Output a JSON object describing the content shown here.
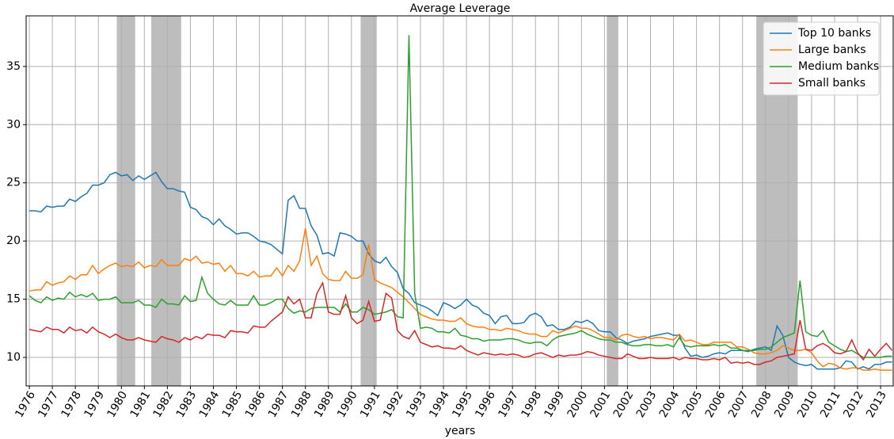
{
  "chart_data": {
    "type": "line",
    "title": "Average Leverage",
    "x_label": "years",
    "xlim": [
      1975.86,
      2013.55
    ],
    "ylim": [
      7.55,
      39.35
    ],
    "xticks": [
      1976,
      1977,
      1978,
      1979,
      1980,
      1981,
      1982,
      1983,
      1984,
      1985,
      1986,
      1987,
      1988,
      1989,
      1990,
      1991,
      1992,
      1993,
      1994,
      1995,
      1996,
      1997,
      1998,
      1999,
      2000,
      2001,
      2002,
      2003,
      2004,
      2005,
      2006,
      2007,
      2008,
      2009,
      2010,
      2011,
      2012,
      2013
    ],
    "yticks": [
      10,
      15,
      20,
      25,
      30,
      35
    ],
    "grid": true,
    "legend": "upper right",
    "shaded_color": "#bdbdbd",
    "shaded_periods": [
      [
        1979.8,
        1980.6
      ],
      [
        1981.3,
        1982.6
      ],
      [
        1990.4,
        1991.1
      ],
      [
        2001.1,
        2001.6
      ],
      [
        2007.6,
        2009.4
      ]
    ],
    "x": [
      1976,
      1976.25,
      1976.5,
      1976.75,
      1977,
      1977.25,
      1977.5,
      1977.75,
      1978,
      1978.25,
      1978.5,
      1978.75,
      1979,
      1979.25,
      1979.5,
      1979.75,
      1980,
      1980.25,
      1980.5,
      1980.75,
      1981,
      1981.25,
      1981.5,
      1981.75,
      1982,
      1982.25,
      1982.5,
      1982.75,
      1983,
      1983.25,
      1983.5,
      1983.75,
      1984,
      1984.25,
      1984.5,
      1984.75,
      1985,
      1985.25,
      1985.5,
      1985.75,
      1986,
      1986.25,
      1986.5,
      1986.75,
      1987,
      1987.25,
      1987.5,
      1987.75,
      1988,
      1988.25,
      1988.5,
      1988.75,
      1989,
      1989.25,
      1989.5,
      1989.75,
      1990,
      1990.25,
      1990.5,
      1990.75,
      1991,
      1991.25,
      1991.5,
      1991.75,
      1992,
      1992.25,
      1992.5,
      1992.75,
      1993,
      1993.25,
      1993.5,
      1993.75,
      1994,
      1994.25,
      1994.5,
      1994.75,
      1995,
      1995.25,
      1995.5,
      1995.75,
      1996,
      1996.25,
      1996.5,
      1996.75,
      1997,
      1997.25,
      1997.5,
      1997.75,
      1998,
      1998.25,
      1998.5,
      1998.75,
      1999,
      1999.25,
      1999.5,
      1999.75,
      2000,
      2000.25,
      2000.5,
      2000.75,
      2001,
      2001.25,
      2001.5,
      2001.75,
      2002,
      2002.25,
      2002.5,
      2002.75,
      2003,
      2003.25,
      2003.5,
      2003.75,
      2004,
      2004.25,
      2004.5,
      2004.75,
      2005,
      2005.25,
      2005.5,
      2005.75,
      2006,
      2006.25,
      2006.5,
      2006.75,
      2007,
      2007.25,
      2007.5,
      2007.75,
      2008,
      2008.25,
      2008.5,
      2008.75,
      2009,
      2009.25,
      2009.5,
      2009.75,
      2010,
      2010.25,
      2010.5,
      2010.75,
      2011,
      2011.25,
      2011.5,
      2011.75,
      2012,
      2012.25,
      2012.5,
      2012.75,
      2013,
      2013.25,
      2013.5
    ],
    "series": [
      {
        "name": "Top 10 banks",
        "color": "#1f77b4",
        "values": [
          22.6,
          22.6,
          22.5,
          23.0,
          22.9,
          23.0,
          23.0,
          23.6,
          23.4,
          23.8,
          24.1,
          24.8,
          24.8,
          25.0,
          25.7,
          25.9,
          25.6,
          25.7,
          25.2,
          25.6,
          25.3,
          25.6,
          25.9,
          25.1,
          24.5,
          24.5,
          24.3,
          24.2,
          22.9,
          22.7,
          22.1,
          21.9,
          21.4,
          21.9,
          21.3,
          21.0,
          20.6,
          20.7,
          20.7,
          20.4,
          20.0,
          19.9,
          19.7,
          19.3,
          18.9,
          23.5,
          23.9,
          22.8,
          22.8,
          21.3,
          20.5,
          18.9,
          19.0,
          18.7,
          20.7,
          20.6,
          20.4,
          20.0,
          20.0,
          18.9,
          18.3,
          18.1,
          18.6,
          17.8,
          17.3,
          15.9,
          15.5,
          14.7,
          14.5,
          14.3,
          14.0,
          13.6,
          14.7,
          14.5,
          14.2,
          14.5,
          15.0,
          14.5,
          14.3,
          13.8,
          13.6,
          12.9,
          13.5,
          13.6,
          12.9,
          12.9,
          13.0,
          13.6,
          13.8,
          13.5,
          12.7,
          12.8,
          12.4,
          12.4,
          12.6,
          13.1,
          13.0,
          13.2,
          12.9,
          12.3,
          12.2,
          12.2,
          11.7,
          11.5,
          11.2,
          11.4,
          11.5,
          11.6,
          11.8,
          11.9,
          12.0,
          12.1,
          11.9,
          11.9,
          10.8,
          10.1,
          10.2,
          10.0,
          10.1,
          10.3,
          10.4,
          10.3,
          10.6,
          10.6,
          10.6,
          10.5,
          10.7,
          10.8,
          10.9,
          10.6,
          12.7,
          11.9,
          10.0,
          9.6,
          9.4,
          9.3,
          9.4,
          9.0,
          9.0,
          9.0,
          9.0,
          9.1,
          9.7,
          9.6,
          9.0,
          9.2,
          9.0,
          9.4,
          9.4,
          9.6,
          9.6
        ]
      },
      {
        "name": "Large banks",
        "color": "#ff7f0e",
        "values": [
          15.7,
          15.8,
          15.8,
          16.5,
          16.2,
          16.4,
          16.5,
          17.0,
          16.7,
          17.1,
          17.1,
          17.9,
          17.2,
          17.6,
          17.9,
          18.1,
          17.8,
          17.9,
          17.8,
          18.2,
          17.7,
          17.9,
          17.8,
          18.4,
          17.9,
          17.9,
          17.9,
          18.5,
          18.3,
          18.7,
          18.1,
          18.2,
          18.0,
          18.1,
          17.4,
          17.9,
          17.2,
          17.2,
          17.0,
          17.4,
          16.9,
          17.0,
          17.0,
          17.7,
          17.0,
          17.9,
          17.4,
          18.3,
          21.1,
          17.9,
          18.7,
          17.2,
          16.7,
          16.6,
          16.6,
          17.4,
          16.8,
          16.8,
          17.1,
          19.7,
          16.7,
          16.4,
          16.2,
          16.0,
          15.6,
          15.2,
          14.7,
          14.2,
          13.7,
          13.5,
          13.3,
          13.2,
          13.2,
          13.1,
          13.1,
          13.4,
          12.9,
          12.7,
          12.6,
          12.6,
          12.4,
          12.4,
          12.3,
          12.5,
          12.4,
          12.3,
          12.1,
          12.0,
          12.0,
          11.8,
          11.8,
          12.3,
          12.1,
          12.3,
          12.5,
          12.7,
          12.5,
          12.5,
          12.3,
          12.0,
          11.7,
          11.7,
          11.5,
          11.9,
          12.0,
          11.8,
          11.7,
          11.8,
          11.6,
          11.7,
          11.7,
          11.6,
          11.5,
          12.0,
          11.4,
          11.5,
          11.3,
          11.1,
          11.1,
          11.3,
          11.3,
          11.3,
          11.3,
          10.9,
          10.9,
          10.7,
          10.4,
          10.3,
          10.3,
          10.4,
          10.6,
          11.0,
          10.8,
          10.6,
          10.6,
          10.7,
          10.4,
          9.7,
          9.2,
          9.5,
          9.4,
          9.1,
          9.0,
          9.1,
          9.1,
          8.9,
          8.9,
          9.0,
          8.9,
          8.9,
          8.9
        ]
      },
      {
        "name": "Medium banks",
        "color": "#2ca02c",
        "values": [
          15.3,
          14.9,
          14.7,
          15.2,
          14.9,
          15.1,
          15.0,
          15.6,
          15.2,
          15.4,
          15.2,
          15.5,
          14.9,
          15.0,
          15.0,
          15.2,
          14.7,
          14.7,
          14.7,
          14.9,
          14.5,
          14.5,
          14.3,
          15.0,
          14.6,
          14.6,
          14.5,
          15.3,
          14.8,
          14.9,
          16.9,
          15.5,
          15.0,
          14.6,
          14.5,
          14.9,
          14.5,
          14.5,
          14.5,
          15.3,
          14.5,
          14.5,
          14.7,
          15.0,
          15.0,
          14.2,
          13.8,
          14.0,
          13.9,
          14.2,
          14.3,
          14.3,
          14.3,
          14.3,
          13.9,
          14.6,
          13.9,
          13.9,
          14.3,
          14.1,
          13.7,
          13.8,
          13.9,
          14.1,
          13.5,
          13.4,
          37.7,
          15.5,
          12.5,
          12.6,
          12.5,
          12.2,
          12.2,
          12.1,
          12.5,
          11.9,
          11.8,
          11.6,
          11.6,
          11.4,
          11.5,
          11.5,
          11.5,
          11.6,
          11.6,
          11.5,
          11.3,
          11.2,
          11.3,
          11.3,
          11.0,
          11.5,
          11.8,
          11.9,
          12.0,
          12.1,
          12.3,
          12.0,
          11.8,
          11.6,
          11.5,
          11.5,
          11.3,
          11.3,
          11.1,
          11.0,
          11.0,
          11.1,
          11.1,
          11.0,
          11.0,
          11.1,
          10.9,
          11.7,
          11.0,
          10.9,
          11.0,
          11.0,
          11.0,
          11.1,
          11.0,
          11.1,
          10.8,
          10.8,
          10.6,
          10.6,
          10.6,
          10.7,
          10.7,
          10.9,
          11.3,
          11.7,
          11.9,
          12.1,
          16.6,
          12.2,
          11.9,
          11.8,
          12.3,
          11.3,
          11.0,
          10.7,
          10.5,
          10.6,
          10.3,
          10.0,
          10.0,
          10.0,
          10.0,
          10.1,
          10.1
        ]
      },
      {
        "name": "Small banks",
        "color": "#d62728",
        "values": [
          12.4,
          12.3,
          12.2,
          12.6,
          12.4,
          12.4,
          12.1,
          12.6,
          12.3,
          12.4,
          12.1,
          12.6,
          12.2,
          12.0,
          11.7,
          12.0,
          11.7,
          11.5,
          11.5,
          11.7,
          11.5,
          11.4,
          11.3,
          11.8,
          11.6,
          11.5,
          11.3,
          11.7,
          11.5,
          11.8,
          11.6,
          12.0,
          11.9,
          11.9,
          11.7,
          12.3,
          12.2,
          12.2,
          12.1,
          12.7,
          12.6,
          12.6,
          13.1,
          13.5,
          13.9,
          15.2,
          14.6,
          15.0,
          13.4,
          13.4,
          15.5,
          16.4,
          13.9,
          13.7,
          13.7,
          15.3,
          13.4,
          12.9,
          13.2,
          14.8,
          13.1,
          13.2,
          15.5,
          15.1,
          12.3,
          11.8,
          11.6,
          12.3,
          11.3,
          11.1,
          10.9,
          11.0,
          10.8,
          10.8,
          10.7,
          11.0,
          10.6,
          10.4,
          10.2,
          10.4,
          10.3,
          10.2,
          10.3,
          10.2,
          10.3,
          10.2,
          10.0,
          10.1,
          10.3,
          10.4,
          10.2,
          10.0,
          10.2,
          10.1,
          10.2,
          10.2,
          10.3,
          10.5,
          10.4,
          10.2,
          10.1,
          10.0,
          9.9,
          9.9,
          10.3,
          10.1,
          9.9,
          9.9,
          10.0,
          9.9,
          9.9,
          9.9,
          10.0,
          9.8,
          10.0,
          9.9,
          9.9,
          9.8,
          9.8,
          9.9,
          9.8,
          10.0,
          9.5,
          9.6,
          9.5,
          9.6,
          9.4,
          9.4,
          9.6,
          9.7,
          10.0,
          10.1,
          10.2,
          10.3,
          13.2,
          10.7,
          10.6,
          11.0,
          11.2,
          10.9,
          10.4,
          10.3,
          10.5,
          11.5,
          10.4,
          9.8,
          10.7,
          10.1,
          10.7,
          11.2,
          10.6
        ]
      }
    ]
  }
}
